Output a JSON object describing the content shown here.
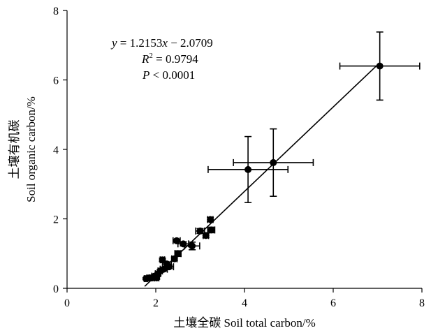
{
  "chart_data": {
    "type": "scatter",
    "xlabel": "土壤全碳 Soil total carbon/%",
    "ylabel_cn": "土壤有机碳",
    "ylabel_en": "Soil organic carbon/%",
    "xlim": [
      0,
      8
    ],
    "ylim": [
      0,
      8
    ],
    "x_ticks": [
      0,
      2,
      4,
      6,
      8
    ],
    "y_ticks": [
      0,
      2,
      4,
      6,
      8
    ],
    "grid": false,
    "annotations": {
      "equation_lhs": "y",
      "equation_rhs": " = 1.2153",
      "equation_var": "x",
      "equation_tail": " − 2.0709",
      "r2_label": "R",
      "r2_sup": "2",
      "r2_value": " = 0.9794",
      "p_label": "P",
      "p_value": " < 0.0001"
    },
    "fit": {
      "slope": 1.2153,
      "intercept": -2.0709,
      "x_range": [
        1.75,
        7.05
      ]
    },
    "points": [
      {
        "x": 7.05,
        "y": 6.4,
        "xerr": 0.9,
        "yerr": 0.98
      },
      {
        "x": 4.65,
        "y": 3.62,
        "xerr": 0.9,
        "yerr": 0.97
      },
      {
        "x": 4.08,
        "y": 3.42,
        "xerr": 0.9,
        "yerr": 0.95
      },
      {
        "x": 3.23,
        "y": 1.98,
        "xerr": 0.06,
        "yerr": 0.06
      },
      {
        "x": 3.25,
        "y": 1.68,
        "xerr": 0.08,
        "yerr": 0.08
      },
      {
        "x": 3.13,
        "y": 1.52,
        "xerr": 0.06,
        "yerr": 0.06
      },
      {
        "x": 3.0,
        "y": 1.65,
        "xerr": 0.1,
        "yerr": 0.07
      },
      {
        "x": 2.47,
        "y": 1.37,
        "xerr": 0.08,
        "yerr": 0.03
      },
      {
        "x": 2.62,
        "y": 1.28,
        "xerr": 0.12,
        "yerr": 0.06
      },
      {
        "x": 2.82,
        "y": 1.22,
        "xerr": 0.17,
        "yerr": 0.11
      },
      {
        "x": 2.5,
        "y": 1.0,
        "xerr": 0.07,
        "yerr": 0.08
      },
      {
        "x": 2.42,
        "y": 0.85,
        "xerr": 0.06,
        "yerr": 0.05
      },
      {
        "x": 2.25,
        "y": 0.7,
        "xerr": 0.1,
        "yerr": 0.06
      },
      {
        "x": 2.15,
        "y": 0.82,
        "xerr": 0.05,
        "yerr": 0.05
      },
      {
        "x": 2.3,
        "y": 0.62,
        "xerr": 0.1,
        "yerr": 0.05
      },
      {
        "x": 2.18,
        "y": 0.55,
        "xerr": 0.08,
        "yerr": 0.05
      },
      {
        "x": 2.1,
        "y": 0.5,
        "xerr": 0.05,
        "yerr": 0.04
      },
      {
        "x": 2.05,
        "y": 0.42,
        "xerr": 0.06,
        "yerr": 0.04
      },
      {
        "x": 1.97,
        "y": 0.35,
        "xerr": 0.06,
        "yerr": 0.04
      },
      {
        "x": 2.02,
        "y": 0.3,
        "xerr": 0.05,
        "yerr": 0.04
      },
      {
        "x": 1.92,
        "y": 0.3,
        "xerr": 0.05,
        "yerr": 0.04
      },
      {
        "x": 1.85,
        "y": 0.3,
        "xerr": 0.05,
        "yerr": 0.03
      },
      {
        "x": 1.78,
        "y": 0.28,
        "xerr": 0.04,
        "yerr": 0.03
      }
    ]
  }
}
